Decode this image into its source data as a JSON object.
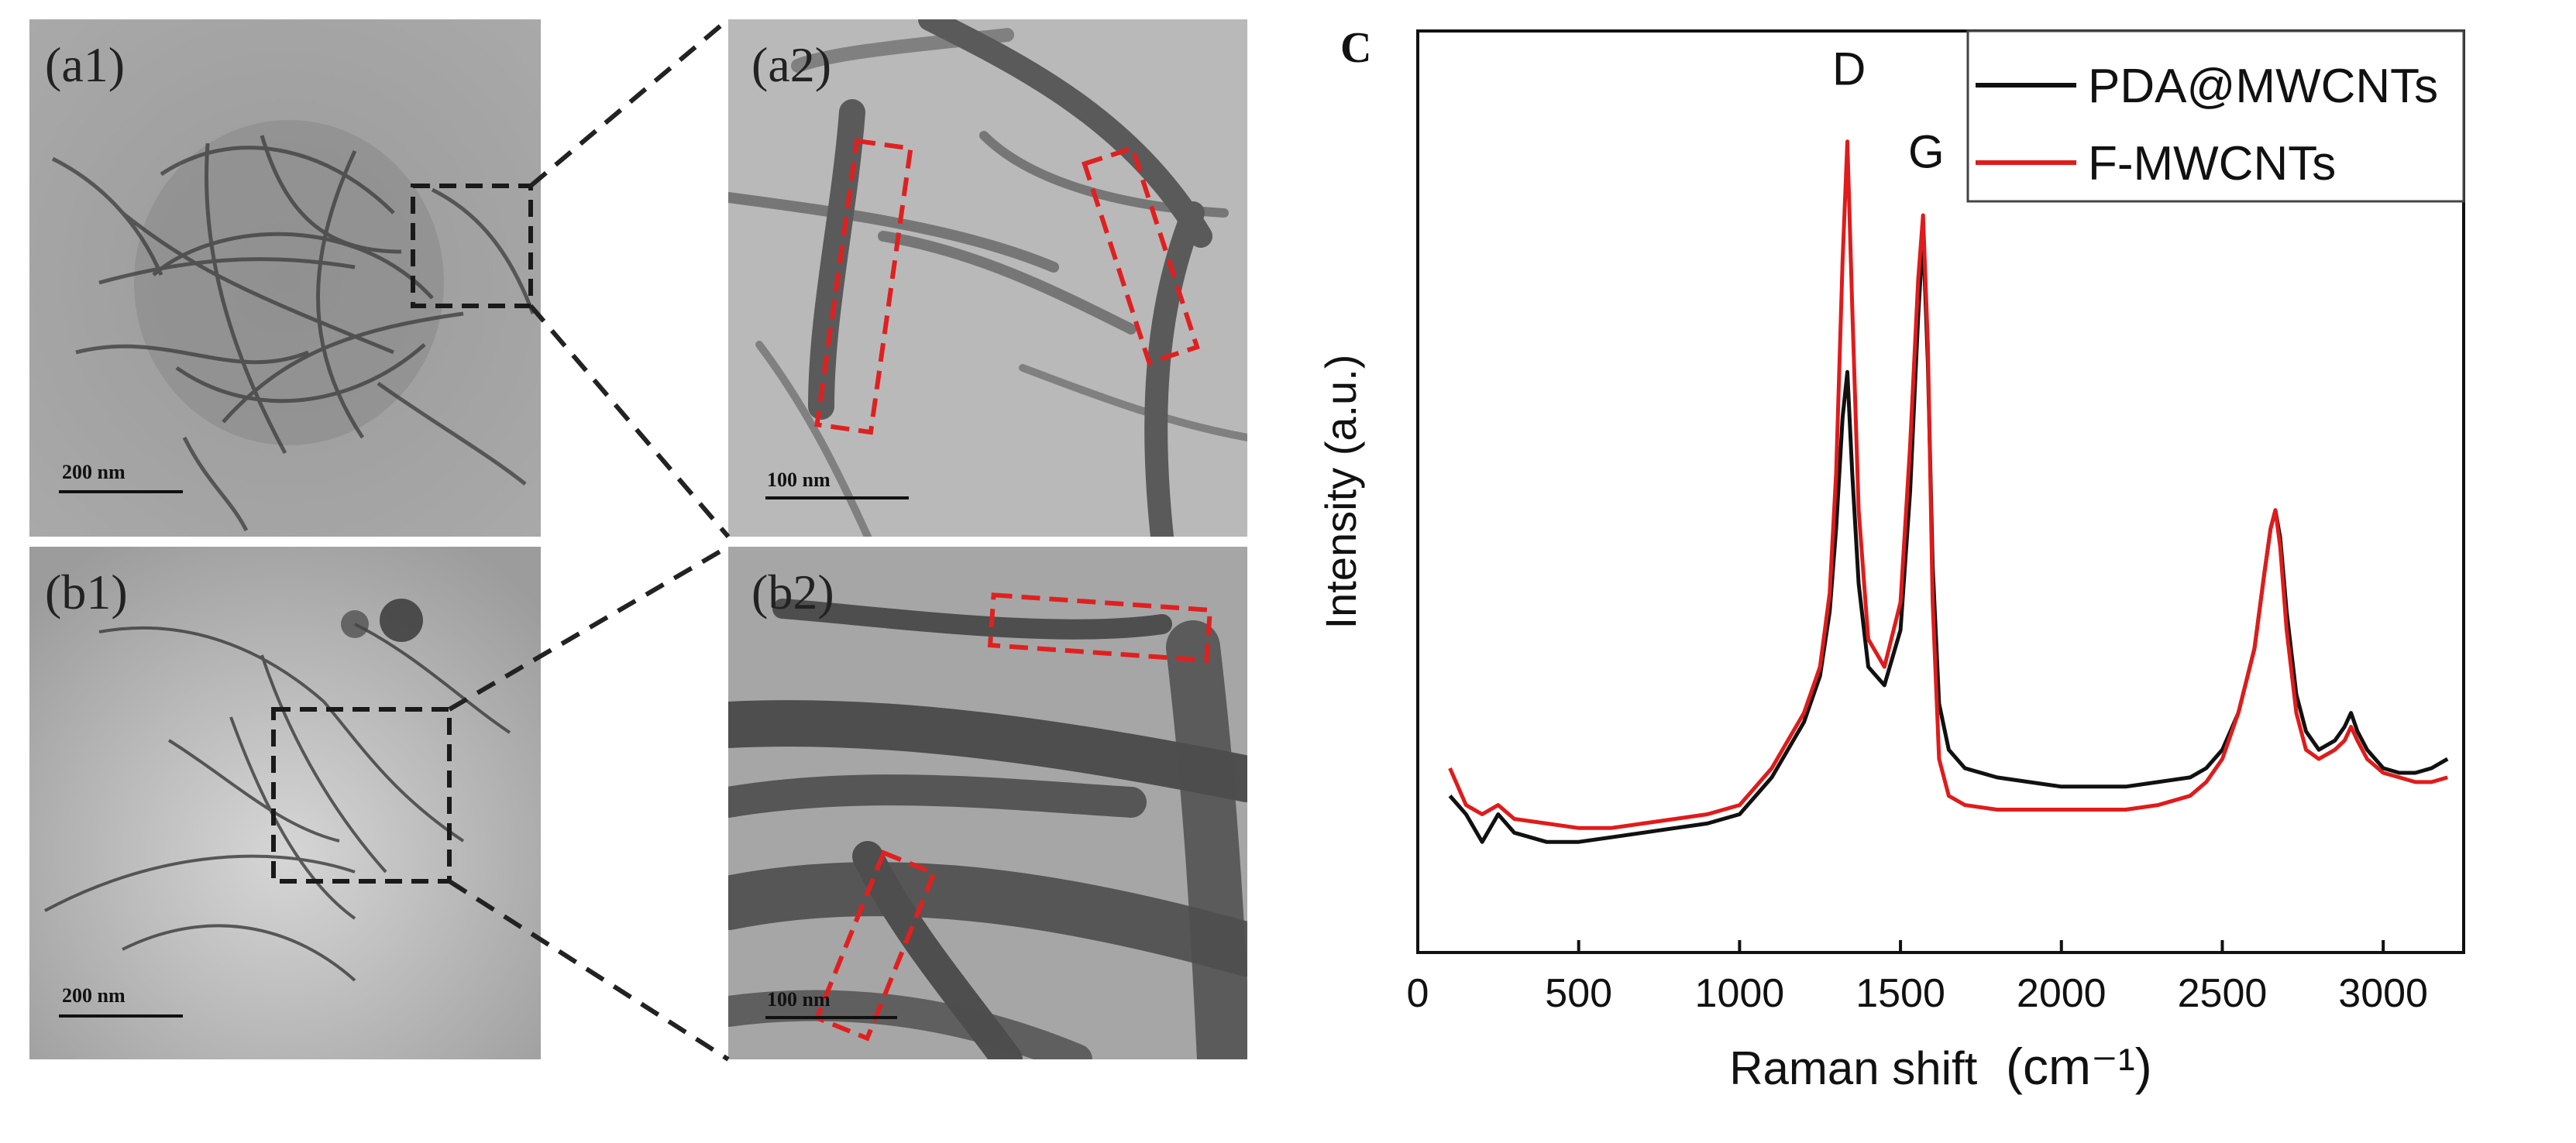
{
  "panels": {
    "a1": {
      "label": "(a1)",
      "scale": "200 nm"
    },
    "a2": {
      "label": "(a2)",
      "scale": "100 nm"
    },
    "b1": {
      "label": "(b1)",
      "scale": "200 nm"
    },
    "b2": {
      "label": "(b2)",
      "scale": "100 nm"
    }
  },
  "colors": {
    "black_series": "#111111",
    "red_series": "#e01b1b",
    "highlight": "#e02020",
    "zoom": "#222222"
  },
  "chart_data": {
    "type": "line",
    "panel_label": "C",
    "xlabel": "Raman shift",
    "xlabel_unit": "(cm⁻¹)",
    "ylabel": "Intensity (a.u.)",
    "xlim": [
      0,
      3250
    ],
    "ylim": [
      0,
      100
    ],
    "xticks": [
      0,
      500,
      1000,
      1500,
      2000,
      2500,
      3000
    ],
    "legend_position": "top-right",
    "annotations": [
      {
        "text": "D",
        "x": 1340,
        "y": 95
      },
      {
        "text": "G",
        "x": 1580,
        "y": 86
      }
    ],
    "series": [
      {
        "name": "PDA@MWCNTs",
        "color": "#111111",
        "x": [
          100,
          150,
          200,
          250,
          300,
          400,
          500,
          600,
          700,
          800,
          900,
          1000,
          1050,
          1100,
          1150,
          1200,
          1250,
          1280,
          1300,
          1320,
          1335,
          1350,
          1370,
          1400,
          1450,
          1500,
          1530,
          1555,
          1570,
          1585,
          1600,
          1620,
          1650,
          1700,
          1800,
          1900,
          2000,
          2100,
          2200,
          2300,
          2400,
          2450,
          2500,
          2550,
          2600,
          2630,
          2650,
          2665,
          2680,
          2700,
          2730,
          2760,
          2800,
          2850,
          2880,
          2900,
          2920,
          2950,
          3000,
          3050,
          3100,
          3150,
          3200
        ],
        "y": [
          17,
          15,
          12,
          15,
          13,
          12,
          12,
          12.5,
          13,
          13.5,
          14,
          15,
          17,
          19,
          22,
          25,
          30,
          37,
          46,
          58,
          63,
          52,
          40,
          31,
          29,
          35,
          50,
          69,
          78,
          64,
          42,
          27,
          22,
          20,
          19,
          18.5,
          18,
          18,
          18,
          18.5,
          19,
          20,
          22,
          26,
          33,
          41,
          46,
          48,
          45,
          37,
          28,
          24,
          22,
          23,
          24.5,
          26,
          24,
          22,
          20,
          19.5,
          19.5,
          20,
          21
        ]
      },
      {
        "name": "F-MWCNTs",
        "color": "#e01b1b",
        "x": [
          100,
          150,
          200,
          250,
          300,
          400,
          500,
          600,
          700,
          800,
          900,
          1000,
          1050,
          1100,
          1150,
          1200,
          1250,
          1280,
          1300,
          1320,
          1335,
          1350,
          1370,
          1400,
          1450,
          1500,
          1530,
          1555,
          1570,
          1585,
          1600,
          1620,
          1650,
          1700,
          1800,
          1900,
          2000,
          2100,
          2200,
          2300,
          2400,
          2450,
          2500,
          2550,
          2600,
          2630,
          2650,
          2665,
          2680,
          2700,
          2730,
          2760,
          2800,
          2850,
          2880,
          2900,
          2920,
          2950,
          3000,
          3050,
          3100,
          3150,
          3200
        ],
        "y": [
          20,
          16,
          15,
          16,
          14.5,
          14,
          13.5,
          13.5,
          14,
          14.5,
          15,
          16,
          18,
          20,
          23,
          26,
          31,
          39,
          52,
          75,
          88,
          70,
          48,
          34,
          31,
          38,
          55,
          73,
          80,
          66,
          38,
          21,
          17,
          16,
          15.5,
          15.5,
          15.5,
          15.5,
          15.5,
          16,
          17,
          18.5,
          21,
          26,
          33,
          41,
          46,
          48,
          44,
          35,
          26,
          22,
          21,
          22,
          23,
          24.5,
          23,
          21,
          19.5,
          19,
          18.5,
          18.5,
          19
        ]
      }
    ]
  }
}
